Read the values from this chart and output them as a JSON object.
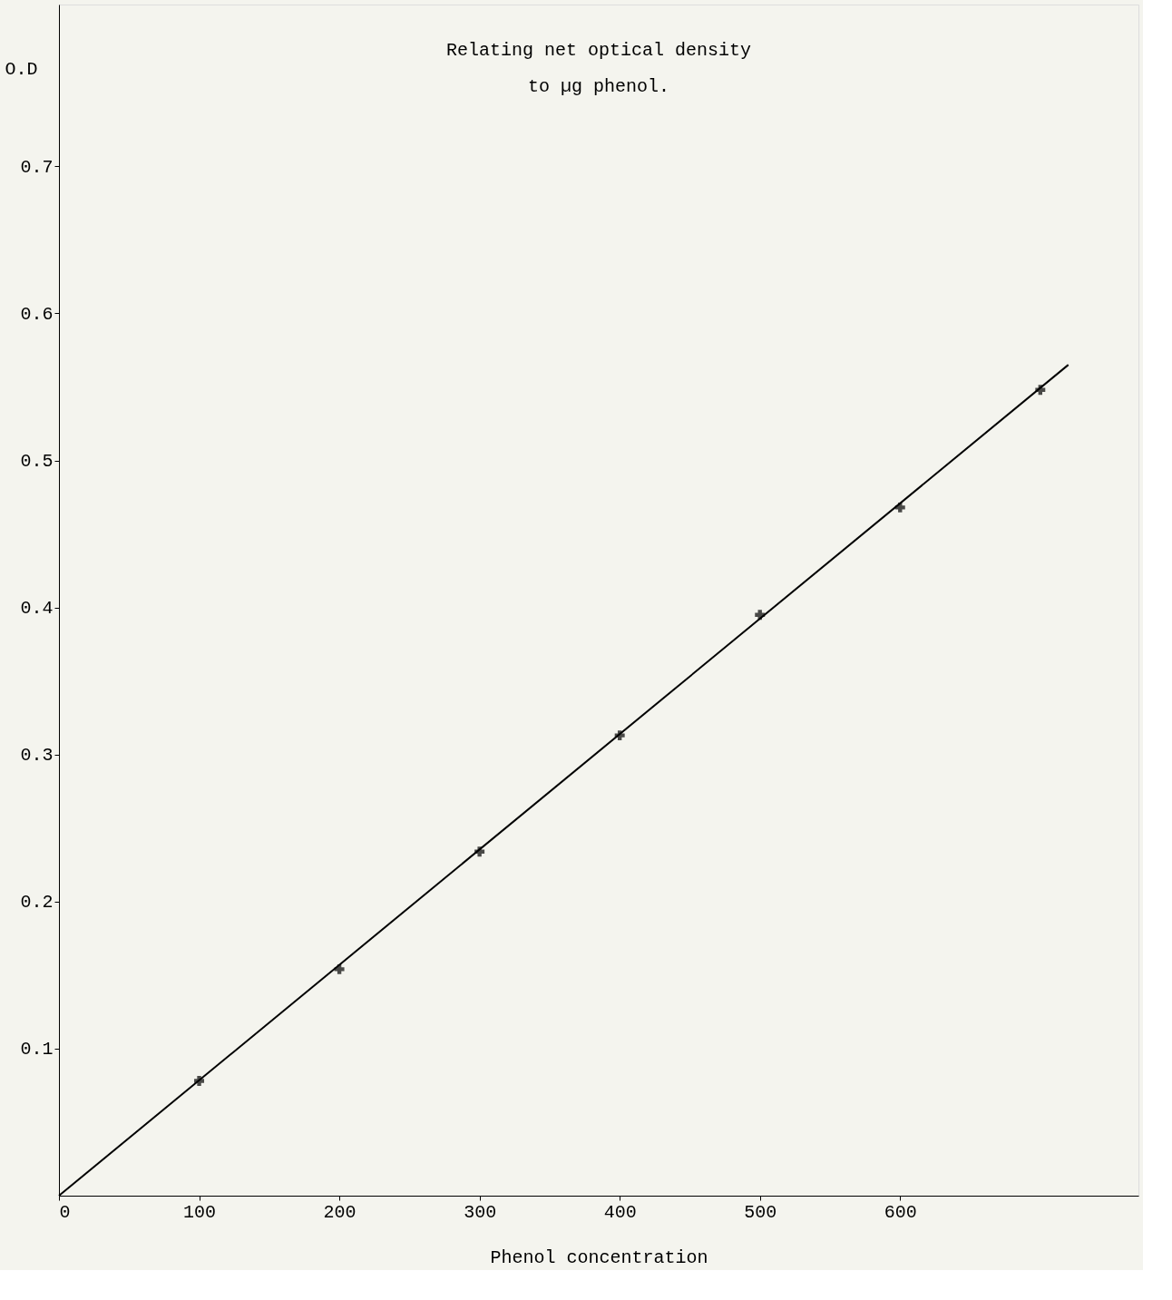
{
  "chart_data": {
    "type": "scatter",
    "title": "Relating net optical density",
    "subtitle": "to µg phenol.",
    "xlabel": "Phenol concentration",
    "ylabel": "O.D",
    "xlim": [
      0,
      770
    ],
    "ylim": [
      0,
      0.81
    ],
    "xticks": [
      0,
      100,
      200,
      300,
      400,
      500,
      600
    ],
    "yticks": [
      0.1,
      0.2,
      0.3,
      0.4,
      0.5,
      0.6,
      0.7
    ],
    "grid": false,
    "series": [
      {
        "color": "#000000",
        "marker": "cross",
        "x": [
          100,
          200,
          300,
          400,
          500,
          600,
          700
        ],
        "values": [
          0.078,
          0.154,
          0.234,
          0.313,
          0.395,
          0.468,
          0.548
        ]
      },
      {
        "type": "line",
        "color": "#000000",
        "marker": "none",
        "line_style": "solid",
        "x": [
          0,
          720
        ],
        "values": [
          0,
          0.565
        ]
      }
    ]
  }
}
